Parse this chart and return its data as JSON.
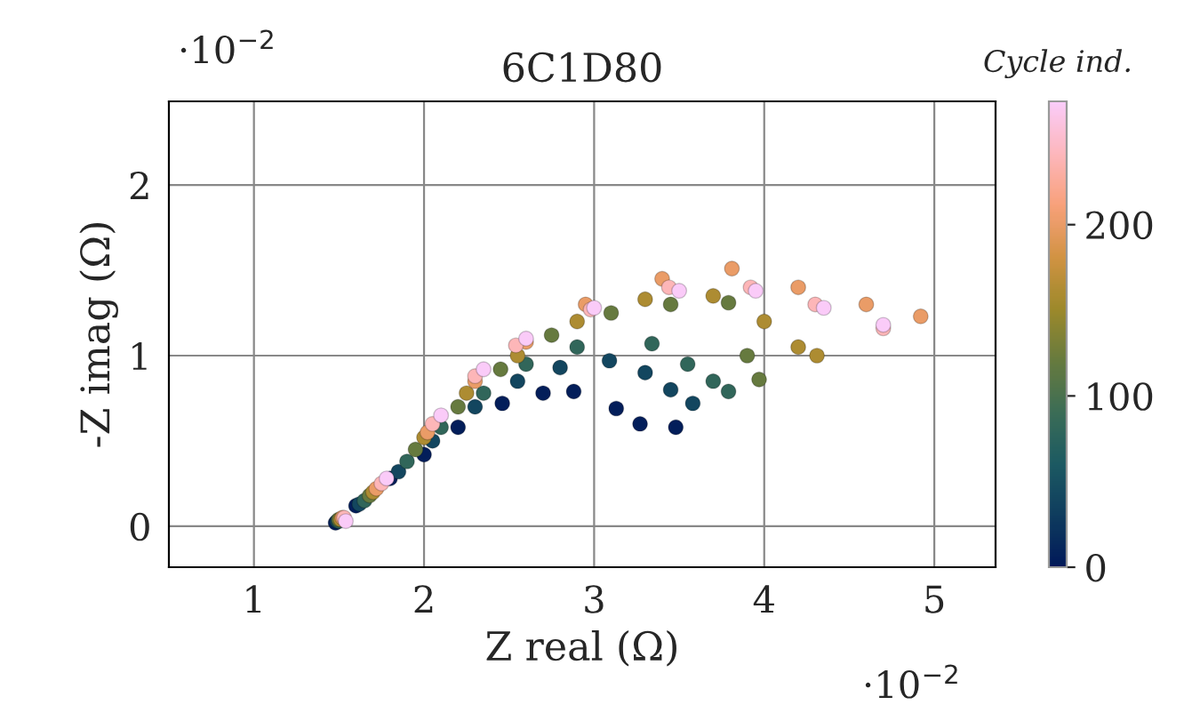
{
  "chart_data": {
    "type": "scatter",
    "title": "6C1D80",
    "xlabel": "Z real (Ω)",
    "ylabel": "-Z imag (Ω)",
    "clabel": "Cycle ind.",
    "annotations": [
      "·10$^{−2}$",
      "·10$^{−2}$"
    ],
    "x": [
      1.48,
      1.6,
      1.8,
      2.0,
      2.2,
      2.46,
      2.7,
      2.88,
      3.13,
      3.27,
      3.48,
      1.49,
      1.62,
      1.85,
      2.05,
      2.3,
      2.55,
      2.8,
      3.09,
      3.3,
      3.45,
      3.58,
      1.5,
      1.65,
      1.9,
      2.1,
      2.35,
      2.6,
      2.9,
      3.34,
      3.55,
      3.7,
      3.79,
      1.5,
      1.68,
      1.95,
      2.2,
      2.45,
      2.75,
      3.1,
      3.45,
      3.79,
      3.9,
      3.97,
      1.51,
      1.7,
      2.0,
      2.25,
      2.55,
      2.9,
      3.3,
      3.7,
      4.0,
      4.2,
      4.31,
      1.52,
      1.72,
      2.02,
      2.3,
      2.6,
      2.95,
      3.4,
      3.81,
      4.2,
      4.6,
      4.92,
      1.53,
      1.75,
      2.05,
      2.3,
      2.54,
      2.98,
      3.44,
      3.92,
      4.3,
      4.7,
      1.54,
      1.78,
      2.1,
      2.35,
      2.6,
      3.0,
      3.5,
      3.95,
      4.35,
      4.7
    ],
    "values": [
      0.02,
      0.12,
      0.28,
      0.42,
      0.58,
      0.72,
      0.78,
      0.79,
      0.69,
      0.6,
      0.58,
      0.03,
      0.13,
      0.32,
      0.5,
      0.7,
      0.85,
      0.93,
      0.97,
      0.9,
      0.8,
      0.72,
      0.03,
      0.15,
      0.38,
      0.58,
      0.78,
      0.95,
      1.05,
      1.07,
      0.95,
      0.85,
      0.79,
      0.04,
      0.18,
      0.45,
      0.7,
      0.92,
      1.12,
      1.25,
      1.3,
      1.31,
      1.0,
      0.86,
      0.04,
      0.2,
      0.52,
      0.78,
      1.0,
      1.2,
      1.33,
      1.35,
      1.2,
      1.05,
      1.0,
      0.05,
      0.22,
      0.55,
      0.85,
      1.08,
      1.3,
      1.45,
      1.51,
      1.4,
      1.3,
      1.23,
      0.05,
      0.25,
      0.6,
      0.88,
      1.06,
      1.27,
      1.4,
      1.4,
      1.3,
      1.16,
      0.03,
      0.28,
      0.65,
      0.92,
      1.1,
      1.28,
      1.38,
      1.38,
      1.28,
      1.18
    ],
    "cvalues": [
      5,
      5,
      5,
      5,
      5,
      5,
      5,
      5,
      5,
      5,
      5,
      40,
      40,
      40,
      40,
      40,
      40,
      40,
      40,
      40,
      40,
      40,
      80,
      80,
      80,
      80,
      80,
      80,
      80,
      80,
      80,
      80,
      80,
      120,
      120,
      120,
      120,
      120,
      120,
      120,
      120,
      120,
      120,
      120,
      160,
      160,
      160,
      160,
      160,
      160,
      160,
      160,
      160,
      160,
      160,
      200,
      200,
      200,
      200,
      200,
      200,
      200,
      200,
      200,
      200,
      200,
      240,
      240,
      240,
      240,
      240,
      240,
      240,
      240,
      240,
      240,
      270,
      270,
      270,
      270,
      270,
      270,
      270,
      270,
      270,
      270
    ],
    "xlim": [
      0.5,
      5.36
    ],
    "xticks": [
      1,
      2,
      3,
      4,
      5
    ],
    "ylim": [
      -0.24,
      2.49
    ],
    "yticks": [
      0,
      1,
      2
    ],
    "clim": [
      0,
      272
    ],
    "cticks": [
      0,
      100,
      200
    ],
    "grid": true,
    "marker": "circle"
  }
}
